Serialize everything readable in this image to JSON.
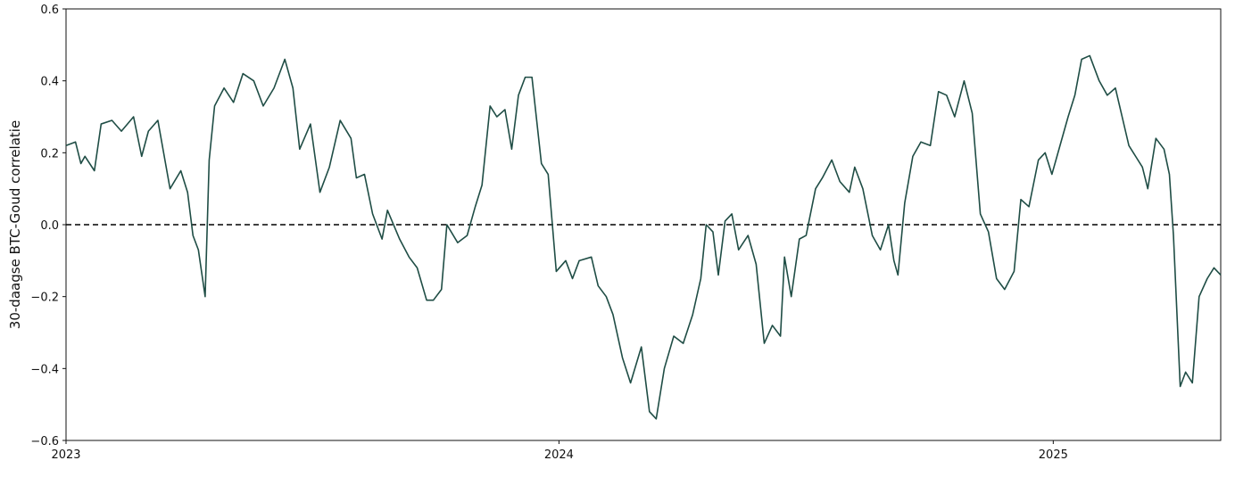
{
  "chart_data": {
    "type": "line",
    "title": "",
    "xlabel": "",
    "ylabel": "30-daagse BTC-Goud correlatie",
    "ylim": [
      -0.6,
      0.6
    ],
    "yticks": [
      "−0.6",
      "−0.4",
      "−0.2",
      "0.0",
      "0.2",
      "0.4",
      "0.6"
    ],
    "xlim": [
      "2023-01-01",
      "2025-05-05"
    ],
    "xticks": [
      {
        "date": "2023-01-01",
        "label": "2023"
      },
      {
        "date": "2024-01-01",
        "label": "2024"
      },
      {
        "date": "2025-01-01",
        "label": "2025"
      }
    ],
    "grid": false,
    "line_color": "#1f4d45",
    "reference_line": {
      "y": 0.0,
      "style": "dashed",
      "color": "#000000"
    },
    "series": [
      {
        "values": [
          [
            "2023-01-01",
            0.22
          ],
          [
            "2023-01-08",
            0.23
          ],
          [
            "2023-01-12",
            0.17
          ],
          [
            "2023-01-15",
            0.19
          ],
          [
            "2023-01-22",
            0.15
          ],
          [
            "2023-01-27",
            0.28
          ],
          [
            "2023-02-04",
            0.29
          ],
          [
            "2023-02-11",
            0.26
          ],
          [
            "2023-02-20",
            0.3
          ],
          [
            "2023-02-26",
            0.19
          ],
          [
            "2023-03-03",
            0.26
          ],
          [
            "2023-03-10",
            0.29
          ],
          [
            "2023-03-19",
            0.1
          ],
          [
            "2023-03-27",
            0.15
          ],
          [
            "2023-04-01",
            0.09
          ],
          [
            "2023-04-05",
            -0.03
          ],
          [
            "2023-04-09",
            -0.07
          ],
          [
            "2023-04-14",
            -0.2
          ],
          [
            "2023-04-17",
            0.18
          ],
          [
            "2023-04-21",
            0.33
          ],
          [
            "2023-04-28",
            0.38
          ],
          [
            "2023-05-05",
            0.34
          ],
          [
            "2023-05-12",
            0.42
          ],
          [
            "2023-05-20",
            0.4
          ],
          [
            "2023-05-27",
            0.33
          ],
          [
            "2023-06-04",
            0.38
          ],
          [
            "2023-06-12",
            0.46
          ],
          [
            "2023-06-18",
            0.38
          ],
          [
            "2023-06-23",
            0.21
          ],
          [
            "2023-07-01",
            0.28
          ],
          [
            "2023-07-08",
            0.09
          ],
          [
            "2023-07-15",
            0.16
          ],
          [
            "2023-07-23",
            0.29
          ],
          [
            "2023-07-31",
            0.24
          ],
          [
            "2023-08-04",
            0.13
          ],
          [
            "2023-08-10",
            0.14
          ],
          [
            "2023-08-16",
            0.03
          ],
          [
            "2023-08-23",
            -0.04
          ],
          [
            "2023-08-27",
            0.04
          ],
          [
            "2023-09-05",
            -0.04
          ],
          [
            "2023-09-12",
            -0.09
          ],
          [
            "2023-09-18",
            -0.12
          ],
          [
            "2023-09-25",
            -0.21
          ],
          [
            "2023-09-30",
            -0.21
          ],
          [
            "2023-10-06",
            -0.18
          ],
          [
            "2023-10-10",
            0.0
          ],
          [
            "2023-10-18",
            -0.05
          ],
          [
            "2023-10-25",
            -0.03
          ],
          [
            "2023-10-31",
            0.05
          ],
          [
            "2023-11-05",
            0.11
          ],
          [
            "2023-11-11",
            0.33
          ],
          [
            "2023-11-16",
            0.3
          ],
          [
            "2023-11-22",
            0.32
          ],
          [
            "2023-11-27",
            0.21
          ],
          [
            "2023-12-02",
            0.36
          ],
          [
            "2023-12-07",
            0.41
          ],
          [
            "2023-12-12",
            0.41
          ],
          [
            "2023-12-19",
            0.17
          ],
          [
            "2023-12-24",
            0.14
          ],
          [
            "2023-12-30",
            -0.13
          ]
        ],
        "values_2024": [
          [
            "2024-01-06",
            -0.1
          ],
          [
            "2024-01-11",
            -0.15
          ],
          [
            "2024-01-16",
            -0.1
          ],
          [
            "2024-01-25",
            -0.09
          ],
          [
            "2024-01-30",
            -0.17
          ],
          [
            "2024-02-05",
            -0.2
          ],
          [
            "2024-02-10",
            -0.25
          ],
          [
            "2024-02-17",
            -0.37
          ],
          [
            "2024-02-23",
            -0.44
          ],
          [
            "2024-03-02",
            -0.34
          ],
          [
            "2024-03-08",
            -0.52
          ],
          [
            "2024-03-13",
            -0.54
          ],
          [
            "2024-03-19",
            -0.4
          ],
          [
            "2024-03-26",
            -0.31
          ],
          [
            "2024-04-02",
            -0.33
          ],
          [
            "2024-04-09",
            -0.25
          ],
          [
            "2024-04-15",
            -0.15
          ],
          [
            "2024-04-19",
            0.0
          ],
          [
            "2024-04-24",
            -0.02
          ],
          [
            "2024-04-28",
            -0.14
          ],
          [
            "2024-05-03",
            0.01
          ],
          [
            "2024-05-08",
            0.03
          ],
          [
            "2024-05-13",
            -0.07
          ],
          [
            "2024-05-20",
            -0.03
          ],
          [
            "2024-05-26",
            -0.11
          ],
          [
            "2024-06-01",
            -0.33
          ],
          [
            "2024-06-07",
            -0.28
          ],
          [
            "2024-06-13",
            -0.31
          ],
          [
            "2024-06-16",
            -0.09
          ],
          [
            "2024-06-21",
            -0.2
          ],
          [
            "2024-06-27",
            -0.04
          ],
          [
            "2024-07-02",
            -0.03
          ],
          [
            "2024-07-09",
            0.1
          ],
          [
            "2024-07-14",
            0.13
          ],
          [
            "2024-07-21",
            0.18
          ],
          [
            "2024-07-27",
            0.12
          ],
          [
            "2024-08-03",
            0.09
          ],
          [
            "2024-08-07",
            0.16
          ],
          [
            "2024-08-13",
            0.1
          ],
          [
            "2024-08-20",
            -0.03
          ],
          [
            "2024-08-26",
            -0.07
          ],
          [
            "2024-09-01",
            0.0
          ],
          [
            "2024-09-05",
            -0.1
          ],
          [
            "2024-09-08",
            -0.14
          ],
          [
            "2024-09-13",
            0.06
          ],
          [
            "2024-09-19",
            0.19
          ],
          [
            "2024-09-25",
            0.23
          ],
          [
            "2024-10-02",
            0.22
          ],
          [
            "2024-10-08",
            0.37
          ],
          [
            "2024-10-14",
            0.36
          ],
          [
            "2024-10-20",
            0.3
          ],
          [
            "2024-10-27",
            0.4
          ],
          [
            "2024-11-02",
            0.31
          ],
          [
            "2024-11-08",
            0.03
          ],
          [
            "2024-11-14",
            -0.02
          ],
          [
            "2024-11-20",
            -0.15
          ],
          [
            "2024-11-26",
            -0.18
          ]
        ],
        "values_late": [
          [
            "2024-12-03",
            -0.13
          ],
          [
            "2024-12-08",
            0.07
          ],
          [
            "2024-12-14",
            0.05
          ],
          [
            "2024-12-21",
            0.18
          ],
          [
            "2024-12-26",
            0.2
          ],
          [
            "2024-12-31",
            0.14
          ],
          [
            "2025-01-06",
            0.22
          ],
          [
            "2025-01-12",
            0.3
          ],
          [
            "2025-01-17",
            0.36
          ],
          [
            "2025-01-22",
            0.46
          ],
          [
            "2025-01-28",
            0.47
          ],
          [
            "2025-02-04",
            0.4
          ],
          [
            "2025-02-10",
            0.36
          ],
          [
            "2025-02-16",
            0.38
          ],
          [
            "2025-02-21",
            0.3
          ],
          [
            "2025-02-26",
            0.22
          ],
          [
            "2025-03-03",
            0.19
          ],
          [
            "2025-03-08",
            0.16
          ],
          [
            "2025-03-12",
            0.1
          ],
          [
            "2025-03-18",
            0.24
          ],
          [
            "2025-03-24",
            0.21
          ],
          [
            "2025-03-28",
            0.14
          ],
          [
            "2025-03-31",
            -0.03
          ],
          [
            "2025-04-05",
            -0.45
          ],
          [
            "2025-04-09",
            -0.41
          ],
          [
            "2025-04-14",
            -0.44
          ],
          [
            "2025-04-19",
            -0.2
          ],
          [
            "2025-04-25",
            -0.15
          ],
          [
            "2025-04-30",
            -0.12
          ],
          [
            "2025-05-05",
            -0.14
          ]
        ]
      }
    ]
  }
}
